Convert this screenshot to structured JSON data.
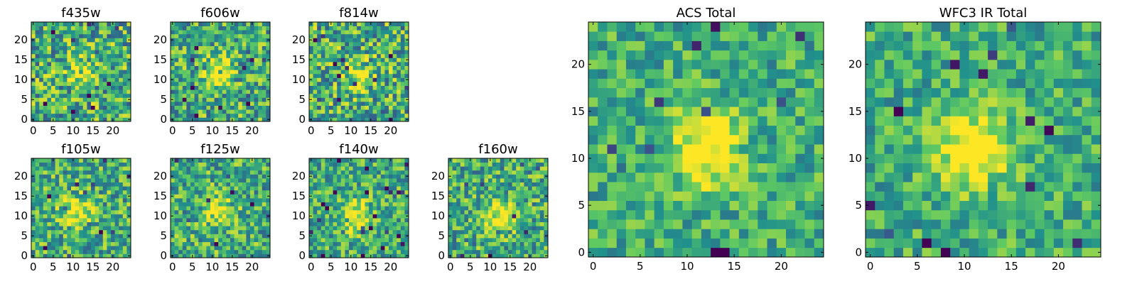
{
  "figure": {
    "colormap": [
      "#440154",
      "#3b528b",
      "#21918c",
      "#5ec962",
      "#fde725"
    ]
  },
  "chart_data": [
    {
      "type": "heatmap",
      "title": "f435w",
      "grid_size": 25,
      "xlim": [
        0,
        24
      ],
      "ylim": [
        0,
        24
      ],
      "x_ticks": [
        0,
        5,
        10,
        15,
        20
      ],
      "y_ticks": [
        0,
        5,
        10,
        15,
        20
      ],
      "source_center": [
        12,
        12
      ],
      "source_strength": 0.25,
      "noise_level": 0.7,
      "seed": 11
    },
    {
      "type": "heatmap",
      "title": "f606w",
      "grid_size": 25,
      "xlim": [
        0,
        24
      ],
      "ylim": [
        0,
        24
      ],
      "x_ticks": [
        0,
        5,
        10,
        15,
        20
      ],
      "y_ticks": [
        0,
        5,
        10,
        15,
        20
      ],
      "source_center": [
        11,
        12
      ],
      "source_strength": 0.45,
      "noise_level": 0.65,
      "seed": 23
    },
    {
      "type": "heatmap",
      "title": "f814w",
      "grid_size": 25,
      "xlim": [
        0,
        24
      ],
      "ylim": [
        0,
        24
      ],
      "x_ticks": [
        0,
        5,
        10,
        15,
        20
      ],
      "y_ticks": [
        0,
        5,
        10,
        15,
        20
      ],
      "source_center": [
        12,
        11
      ],
      "source_strength": 0.35,
      "noise_level": 0.7,
      "seed": 37
    },
    {
      "type": "heatmap",
      "title": "f105w",
      "grid_size": 25,
      "xlim": [
        0,
        24
      ],
      "ylim": [
        0,
        24
      ],
      "x_ticks": [
        0,
        5,
        10,
        15,
        20
      ],
      "y_ticks": [
        0,
        5,
        10,
        15,
        20
      ],
      "source_center": [
        11,
        11
      ],
      "source_strength": 0.4,
      "noise_level": 0.6,
      "seed": 41
    },
    {
      "type": "heatmap",
      "title": "f125w",
      "grid_size": 25,
      "xlim": [
        0,
        24
      ],
      "ylim": [
        0,
        24
      ],
      "x_ticks": [
        0,
        5,
        10,
        15,
        20
      ],
      "y_ticks": [
        0,
        5,
        10,
        15,
        20
      ],
      "source_center": [
        12,
        11
      ],
      "source_strength": 0.4,
      "noise_level": 0.6,
      "seed": 53
    },
    {
      "type": "heatmap",
      "title": "f140w",
      "grid_size": 25,
      "xlim": [
        0,
        24
      ],
      "ylim": [
        0,
        24
      ],
      "x_ticks": [
        0,
        5,
        10,
        15,
        20
      ],
      "y_ticks": [
        0,
        5,
        10,
        15,
        20
      ],
      "source_center": [
        11,
        10
      ],
      "source_strength": 0.45,
      "noise_level": 0.55,
      "seed": 67
    },
    {
      "type": "heatmap",
      "title": "f160w",
      "grid_size": 25,
      "xlim": [
        0,
        24
      ],
      "ylim": [
        0,
        24
      ],
      "x_ticks": [
        0,
        5,
        10,
        15,
        20
      ],
      "y_ticks": [
        0,
        5,
        10,
        15,
        20
      ],
      "source_center": [
        12,
        10
      ],
      "source_strength": 0.45,
      "noise_level": 0.6,
      "seed": 79
    },
    {
      "type": "heatmap",
      "title": "ACS Total",
      "grid_size": 25,
      "xlim": [
        0,
        24
      ],
      "ylim": [
        0,
        24
      ],
      "x_ticks": [
        0,
        5,
        10,
        15,
        20
      ],
      "y_ticks": [
        0,
        5,
        10,
        15,
        20
      ],
      "source_center": [
        12,
        11
      ],
      "source_strength": 0.55,
      "noise_level": 0.45,
      "seed": 97
    },
    {
      "type": "heatmap",
      "title": "WFC3 IR Total",
      "grid_size": 25,
      "xlim": [
        0,
        24
      ],
      "ylim": [
        0,
        24
      ],
      "x_ticks": [
        0,
        5,
        10,
        15,
        20
      ],
      "y_ticks": [
        0,
        5,
        10,
        15,
        20
      ],
      "source_center": [
        11,
        11
      ],
      "source_strength": 0.6,
      "noise_level": 0.45,
      "seed": 113
    }
  ]
}
